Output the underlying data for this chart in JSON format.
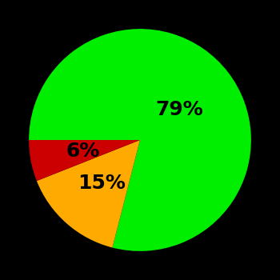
{
  "slices": [
    79,
    15,
    6
  ],
  "colors": [
    "#00ee00",
    "#ffaa00",
    "#cc0000"
  ],
  "labels": [
    "79%",
    "15%",
    "6%"
  ],
  "background_color": "#000000",
  "startangle": 180,
  "counterclock": false,
  "figsize": [
    3.5,
    3.5
  ],
  "dpi": 100,
  "label_fontsize": 18,
  "label_fontweight": "bold",
  "label_color": "#000000",
  "label_radii": [
    0.45,
    0.52,
    0.52
  ]
}
